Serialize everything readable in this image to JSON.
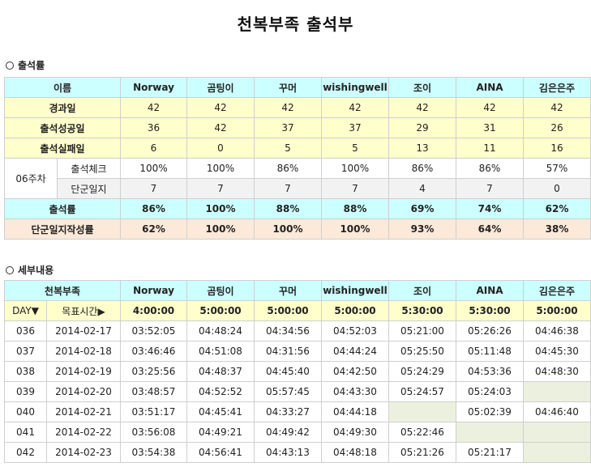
{
  "title": "천복부족 출석부",
  "section1": {
    "label": "출석률",
    "header_label": "이름",
    "members": [
      "Norway",
      "곰팅이",
      "꾸머",
      "wishingwell",
      "조이",
      "AINA",
      "김은은주"
    ],
    "rows": [
      {
        "label": "경과일",
        "values": [
          "42",
          "42",
          "42",
          "42",
          "42",
          "42",
          "42"
        ]
      },
      {
        "label": "출석성공일",
        "values": [
          "36",
          "42",
          "37",
          "37",
          "29",
          "31",
          "26"
        ]
      },
      {
        "label": "출석실패일",
        "values": [
          "6",
          "0",
          "5",
          "5",
          "13",
          "11",
          "16"
        ]
      }
    ],
    "week": {
      "label": "06주차",
      "sub_rows": [
        {
          "label": "출석체크",
          "values": [
            "100%",
            "100%",
            "86%",
            "100%",
            "86%",
            "86%",
            "57%"
          ]
        },
        {
          "label": "단군일지",
          "values": [
            "7",
            "7",
            "7",
            "7",
            "4",
            "7",
            "0"
          ]
        }
      ]
    },
    "rate_row": {
      "label": "출석률",
      "values": [
        "86%",
        "100%",
        "88%",
        "88%",
        "69%",
        "74%",
        "62%"
      ]
    },
    "journal_row": {
      "label": "단군일지작성률",
      "values": [
        "62%",
        "100%",
        "100%",
        "100%",
        "93%",
        "64%",
        "38%"
      ]
    }
  },
  "section2": {
    "label": "세부내용",
    "header_label": "천복부족",
    "day_label": "DAY▼",
    "target_label": "목표시간▶",
    "targets": [
      "4:00:00",
      "5:00:00",
      "5:00:00",
      "5:00:00",
      "5:30:00",
      "5:30:00",
      "5:00:00"
    ],
    "rows": [
      {
        "day": "036",
        "date": "2014-02-17",
        "values": [
          "03:52:05",
          "04:48:24",
          "04:34:56",
          "04:52:03",
          "05:21:00",
          "05:26:26",
          "04:46:38"
        ]
      },
      {
        "day": "037",
        "date": "2014-02-18",
        "values": [
          "03:46:46",
          "04:51:08",
          "04:31:56",
          "04:44:24",
          "05:25:50",
          "05:11:48",
          "04:45:30"
        ]
      },
      {
        "day": "038",
        "date": "2014-02-19",
        "values": [
          "03:25:56",
          "04:48:37",
          "04:45:40",
          "04:42:50",
          "05:24:29",
          "04:53:36",
          "04:48:30"
        ]
      },
      {
        "day": "039",
        "date": "2014-02-20",
        "values": [
          "03:48:57",
          "04:52:52",
          "05:57:45",
          "04:43:30",
          "05:24:57",
          "05:24:03",
          ""
        ]
      },
      {
        "day": "040",
        "date": "2014-02-21",
        "values": [
          "03:51:17",
          "04:45:41",
          "04:33:27",
          "04:44:18",
          "",
          "05:02:39",
          "04:46:40"
        ]
      },
      {
        "day": "041",
        "date": "2014-02-22",
        "values": [
          "03:56:08",
          "04:49:21",
          "04:49:42",
          "04:49:30",
          "05:22:46",
          "",
          ""
        ]
      },
      {
        "day": "042",
        "date": "2014-02-23",
        "values": [
          "03:54:38",
          "04:56:41",
          "04:43:13",
          "04:48:18",
          "05:21:26",
          "05:21:17",
          ""
        ]
      }
    ]
  }
}
